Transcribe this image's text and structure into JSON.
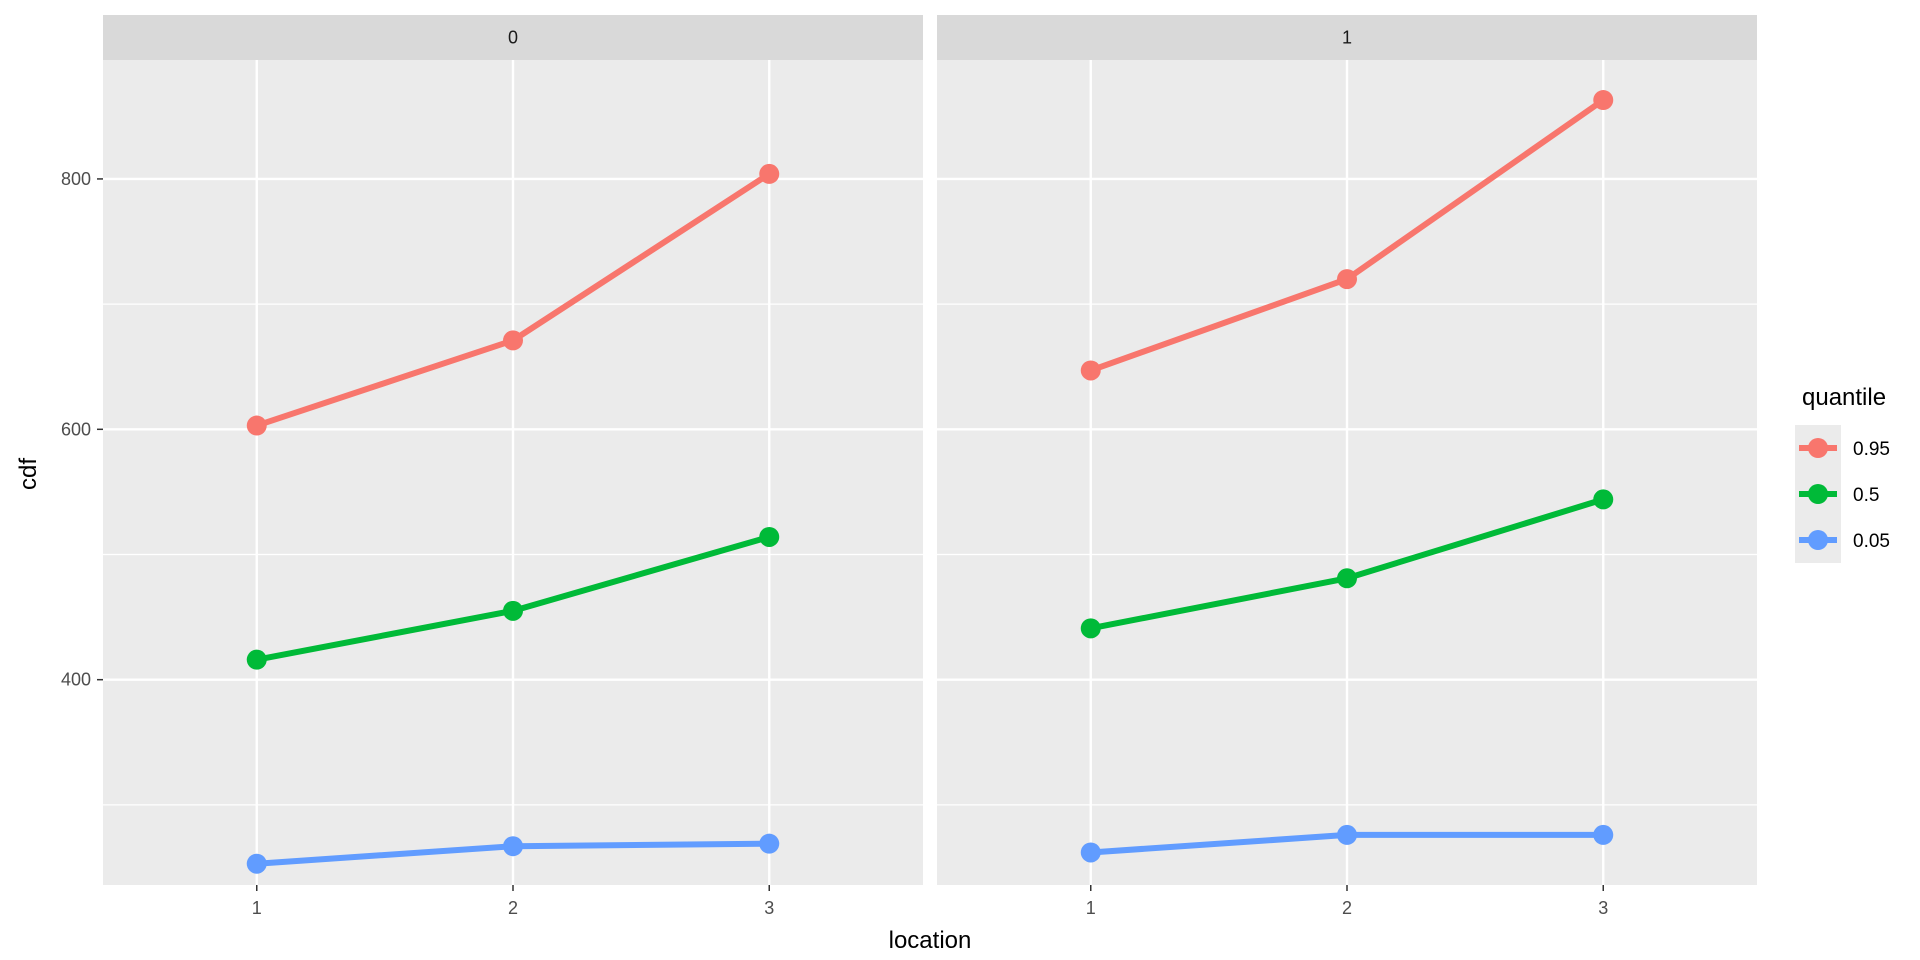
{
  "chart_data": {
    "type": "line",
    "xlabel": "location",
    "ylabel": "cdf",
    "x_categories": [
      "1",
      "2",
      "3"
    ],
    "ylim": [
      236,
      895
    ],
    "y_ticks": [
      400,
      600,
      800
    ],
    "y_minor_ticks": [
      300,
      500,
      700
    ],
    "grid": true,
    "legend": {
      "title": "quantile",
      "placement": "right",
      "entries": [
        {
          "label": "0.95",
          "color": "#F8766D"
        },
        {
          "label": "0.5",
          "color": "#00BA38"
        },
        {
          "label": "0.05",
          "color": "#619CFF"
        }
      ]
    },
    "facets": [
      {
        "label": "0",
        "series": [
          {
            "name": "0.95",
            "color": "#F8766D",
            "values": [
              603,
              671,
              804
            ]
          },
          {
            "name": "0.5",
            "color": "#00BA38",
            "values": [
              416,
              455,
              514
            ]
          },
          {
            "name": "0.05",
            "color": "#619CFF",
            "values": [
              253,
              267,
              269
            ]
          }
        ]
      },
      {
        "label": "1",
        "series": [
          {
            "name": "0.95",
            "color": "#F8766D",
            "values": [
              647,
              720,
              863
            ]
          },
          {
            "name": "0.5",
            "color": "#00BA38",
            "values": [
              441,
              481,
              544
            ]
          },
          {
            "name": "0.05",
            "color": "#619CFF",
            "values": [
              262,
              276,
              276
            ]
          }
        ]
      }
    ]
  }
}
